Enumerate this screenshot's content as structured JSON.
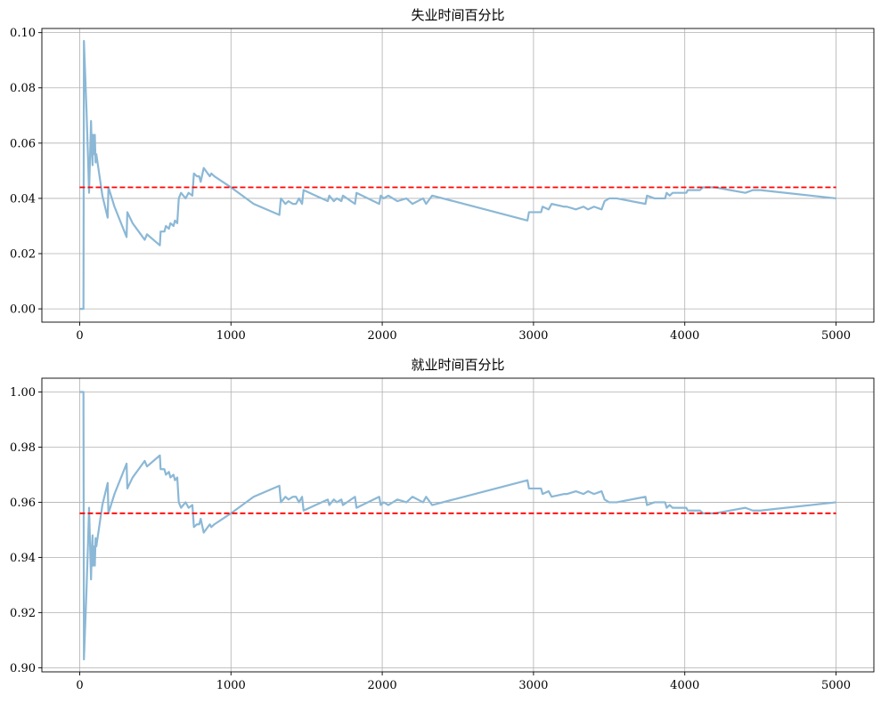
{
  "chart_data": [
    {
      "type": "line",
      "title": "失业时间百分比",
      "xlim": [
        -250,
        5250
      ],
      "ylim": [
        -0.0048,
        0.1015
      ],
      "xticks": [
        0,
        1000,
        2000,
        3000,
        4000,
        5000
      ],
      "xtick_labels": [
        "0",
        "1000",
        "2000",
        "3000",
        "4000",
        "5000"
      ],
      "yticks": [
        0.0,
        0.02,
        0.04,
        0.06,
        0.08,
        0.1
      ],
      "ytick_labels": [
        "0.00",
        "0.02",
        "0.04",
        "0.06",
        "0.08",
        "0.10"
      ],
      "grid": true,
      "series": [
        {
          "line_color": "#8bb8d6",
          "points": [
            [
              0,
              0
            ],
            [
              25,
              0
            ],
            [
              28,
              0.097
            ],
            [
              45,
              0.072
            ],
            [
              55,
              0.055
            ],
            [
              62,
              0.042
            ],
            [
              70,
              0.058
            ],
            [
              75,
              0.068
            ],
            [
              80,
              0.058
            ],
            [
              85,
              0.052
            ],
            [
              88,
              0.063
            ],
            [
              95,
              0.056
            ],
            [
              100,
              0.063
            ],
            [
              105,
              0.053
            ],
            [
              110,
              0.056
            ],
            [
              150,
              0.041
            ],
            [
              185,
              0.033
            ],
            [
              190,
              0.044
            ],
            [
              230,
              0.037
            ],
            [
              310,
              0.026
            ],
            [
              315,
              0.035
            ],
            [
              350,
              0.031
            ],
            [
              390,
              0.028
            ],
            [
              430,
              0.025
            ],
            [
              445,
              0.027
            ],
            [
              530,
              0.023
            ],
            [
              535,
              0.028
            ],
            [
              560,
              0.028
            ],
            [
              570,
              0.03
            ],
            [
              590,
              0.029
            ],
            [
              600,
              0.031
            ],
            [
              620,
              0.03
            ],
            [
              630,
              0.032
            ],
            [
              645,
              0.031
            ],
            [
              655,
              0.04
            ],
            [
              670,
              0.042
            ],
            [
              700,
              0.04
            ],
            [
              720,
              0.042
            ],
            [
              745,
              0.041
            ],
            [
              755,
              0.049
            ],
            [
              775,
              0.048
            ],
            [
              790,
              0.048
            ],
            [
              800,
              0.046
            ],
            [
              820,
              0.051
            ],
            [
              860,
              0.048
            ],
            [
              870,
              0.049
            ],
            [
              890,
              0.048
            ],
            [
              1000,
              0.044
            ],
            [
              1150,
              0.038
            ],
            [
              1320,
              0.034
            ],
            [
              1330,
              0.04
            ],
            [
              1360,
              0.038
            ],
            [
              1380,
              0.039
            ],
            [
              1410,
              0.038
            ],
            [
              1430,
              0.038
            ],
            [
              1450,
              0.04
            ],
            [
              1470,
              0.038
            ],
            [
              1480,
              0.043
            ],
            [
              1560,
              0.041
            ],
            [
              1640,
              0.039
            ],
            [
              1650,
              0.041
            ],
            [
              1680,
              0.039
            ],
            [
              1700,
              0.04
            ],
            [
              1730,
              0.039
            ],
            [
              1740,
              0.041
            ],
            [
              1820,
              0.038
            ],
            [
              1830,
              0.042
            ],
            [
              1980,
              0.038
            ],
            [
              1990,
              0.041
            ],
            [
              2010,
              0.04
            ],
            [
              2040,
              0.041
            ],
            [
              2100,
              0.039
            ],
            [
              2160,
              0.04
            ],
            [
              2200,
              0.038
            ],
            [
              2270,
              0.04
            ],
            [
              2290,
              0.038
            ],
            [
              2330,
              0.041
            ],
            [
              2960,
              0.032
            ],
            [
              2970,
              0.035
            ],
            [
              3050,
              0.035
            ],
            [
              3060,
              0.037
            ],
            [
              3100,
              0.036
            ],
            [
              3120,
              0.038
            ],
            [
              3200,
              0.037
            ],
            [
              3220,
              0.037
            ],
            [
              3280,
              0.036
            ],
            [
              3330,
              0.037
            ],
            [
              3360,
              0.036
            ],
            [
              3400,
              0.037
            ],
            [
              3450,
              0.036
            ],
            [
              3470,
              0.039
            ],
            [
              3500,
              0.04
            ],
            [
              3550,
              0.04
            ],
            [
              3740,
              0.038
            ],
            [
              3750,
              0.041
            ],
            [
              3800,
              0.04
            ],
            [
              3870,
              0.04
            ],
            [
              3880,
              0.042
            ],
            [
              3900,
              0.041
            ],
            [
              3920,
              0.042
            ],
            [
              3960,
              0.042
            ],
            [
              3980,
              0.042
            ],
            [
              4010,
              0.042
            ],
            [
              4020,
              0.043
            ],
            [
              4100,
              0.043
            ],
            [
              4120,
              0.044
            ],
            [
              4200,
              0.044
            ],
            [
              4300,
              0.043
            ],
            [
              4400,
              0.042
            ],
            [
              4450,
              0.043
            ],
            [
              4500,
              0.043
            ],
            [
              5000,
              0.04
            ]
          ]
        }
      ],
      "reference_line": {
        "y": 0.044,
        "color": "#ff0000",
        "style": "dashed",
        "x_range": [
          0,
          5000
        ]
      }
    },
    {
      "type": "line",
      "title": "就业时间百分比",
      "xlim": [
        -250,
        5250
      ],
      "ylim": [
        0.8985,
        1.005
      ],
      "xticks": [
        0,
        1000,
        2000,
        3000,
        4000,
        5000
      ],
      "xtick_labels": [
        "0",
        "1000",
        "2000",
        "3000",
        "4000",
        "5000"
      ],
      "yticks": [
        0.9,
        0.92,
        0.94,
        0.96,
        0.98,
        1.0
      ],
      "ytick_labels": [
        "0.90",
        "0.92",
        "0.94",
        "0.96",
        "0.98",
        "1.00"
      ],
      "grid": true,
      "series": [
        {
          "line_color": "#8bb8d6",
          "points": [
            [
              0,
              1
            ],
            [
              25,
              1
            ],
            [
              28,
              0.903
            ],
            [
              45,
              0.928
            ],
            [
              55,
              0.945
            ],
            [
              62,
              0.958
            ],
            [
              70,
              0.942
            ],
            [
              75,
              0.932
            ],
            [
              80,
              0.942
            ],
            [
              85,
              0.948
            ],
            [
              88,
              0.937
            ],
            [
              95,
              0.944
            ],
            [
              100,
              0.937
            ],
            [
              105,
              0.947
            ],
            [
              110,
              0.944
            ],
            [
              150,
              0.959
            ],
            [
              185,
              0.967
            ],
            [
              190,
              0.956
            ],
            [
              230,
              0.963
            ],
            [
              310,
              0.974
            ],
            [
              315,
              0.965
            ],
            [
              350,
              0.969
            ],
            [
              390,
              0.972
            ],
            [
              430,
              0.975
            ],
            [
              445,
              0.973
            ],
            [
              530,
              0.977
            ],
            [
              535,
              0.972
            ],
            [
              560,
              0.972
            ],
            [
              570,
              0.97
            ],
            [
              590,
              0.971
            ],
            [
              600,
              0.969
            ],
            [
              620,
              0.97
            ],
            [
              630,
              0.968
            ],
            [
              645,
              0.969
            ],
            [
              655,
              0.96
            ],
            [
              670,
              0.958
            ],
            [
              700,
              0.96
            ],
            [
              720,
              0.958
            ],
            [
              745,
              0.959
            ],
            [
              755,
              0.951
            ],
            [
              775,
              0.952
            ],
            [
              790,
              0.952
            ],
            [
              800,
              0.954
            ],
            [
              820,
              0.949
            ],
            [
              860,
              0.952
            ],
            [
              870,
              0.951
            ],
            [
              890,
              0.952
            ],
            [
              1000,
              0.956
            ],
            [
              1150,
              0.962
            ],
            [
              1320,
              0.966
            ],
            [
              1330,
              0.96
            ],
            [
              1360,
              0.962
            ],
            [
              1380,
              0.961
            ],
            [
              1410,
              0.962
            ],
            [
              1430,
              0.962
            ],
            [
              1450,
              0.96
            ],
            [
              1470,
              0.962
            ],
            [
              1480,
              0.957
            ],
            [
              1560,
              0.959
            ],
            [
              1640,
              0.961
            ],
            [
              1650,
              0.959
            ],
            [
              1680,
              0.961
            ],
            [
              1700,
              0.96
            ],
            [
              1730,
              0.961
            ],
            [
              1740,
              0.959
            ],
            [
              1820,
              0.962
            ],
            [
              1830,
              0.958
            ],
            [
              1980,
              0.962
            ],
            [
              1990,
              0.959
            ],
            [
              2010,
              0.96
            ],
            [
              2040,
              0.959
            ],
            [
              2100,
              0.961
            ],
            [
              2160,
              0.96
            ],
            [
              2200,
              0.962
            ],
            [
              2270,
              0.96
            ],
            [
              2290,
              0.962
            ],
            [
              2330,
              0.959
            ],
            [
              2960,
              0.968
            ],
            [
              2970,
              0.965
            ],
            [
              3050,
              0.965
            ],
            [
              3060,
              0.963
            ],
            [
              3100,
              0.964
            ],
            [
              3120,
              0.962
            ],
            [
              3200,
              0.963
            ],
            [
              3220,
              0.963
            ],
            [
              3280,
              0.964
            ],
            [
              3330,
              0.963
            ],
            [
              3360,
              0.964
            ],
            [
              3400,
              0.963
            ],
            [
              3450,
              0.964
            ],
            [
              3470,
              0.961
            ],
            [
              3500,
              0.96
            ],
            [
              3550,
              0.96
            ],
            [
              3740,
              0.962
            ],
            [
              3750,
              0.959
            ],
            [
              3800,
              0.96
            ],
            [
              3870,
              0.96
            ],
            [
              3880,
              0.958
            ],
            [
              3900,
              0.959
            ],
            [
              3920,
              0.958
            ],
            [
              3960,
              0.958
            ],
            [
              3980,
              0.958
            ],
            [
              4010,
              0.958
            ],
            [
              4020,
              0.957
            ],
            [
              4100,
              0.957
            ],
            [
              4120,
              0.956
            ],
            [
              4200,
              0.956
            ],
            [
              4300,
              0.957
            ],
            [
              4400,
              0.958
            ],
            [
              4450,
              0.957
            ],
            [
              4500,
              0.957
            ],
            [
              5000,
              0.96
            ]
          ]
        }
      ],
      "reference_line": {
        "y": 0.956,
        "color": "#ff0000",
        "style": "dashed",
        "x_range": [
          0,
          5000
        ]
      }
    }
  ]
}
